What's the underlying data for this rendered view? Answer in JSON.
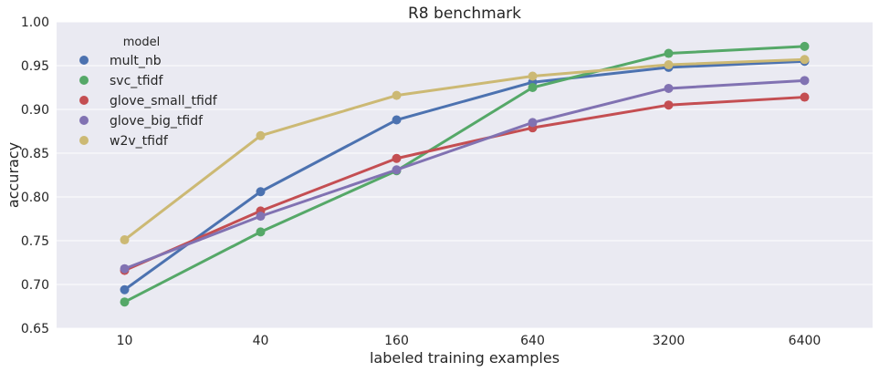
{
  "chart_data": {
    "type": "line",
    "title": "R8 benchmark",
    "xlabel": "labeled training examples",
    "ylabel": "accuracy",
    "categories": [
      "10",
      "40",
      "160",
      "640",
      "3200",
      "6400"
    ],
    "ylim": [
      0.65,
      1.0
    ],
    "yticks": [
      "0.65",
      "0.70",
      "0.75",
      "0.80",
      "0.85",
      "0.90",
      "0.95",
      "1.00"
    ],
    "grid": true,
    "legend": {
      "title": "model",
      "placement": "top-left"
    },
    "series": [
      {
        "name": "mult_nb",
        "color": "#4C72B0",
        "values": [
          0.694,
          0.806,
          0.888,
          0.931,
          0.948,
          0.955
        ]
      },
      {
        "name": "svc_tfidf",
        "color": "#55A868",
        "values": [
          0.68,
          0.76,
          0.83,
          0.925,
          0.964,
          0.972
        ]
      },
      {
        "name": "glove_small_tfidf",
        "color": "#C44E52",
        "values": [
          0.716,
          0.784,
          0.844,
          0.879,
          0.905,
          0.914
        ]
      },
      {
        "name": "glove_big_tfidf",
        "color": "#8172B2",
        "values": [
          0.718,
          0.778,
          0.831,
          0.885,
          0.924,
          0.933
        ]
      },
      {
        "name": "w2v_tfidf",
        "color": "#CCB974",
        "values": [
          0.751,
          0.87,
          0.916,
          0.938,
          0.951,
          0.957
        ]
      }
    ]
  }
}
